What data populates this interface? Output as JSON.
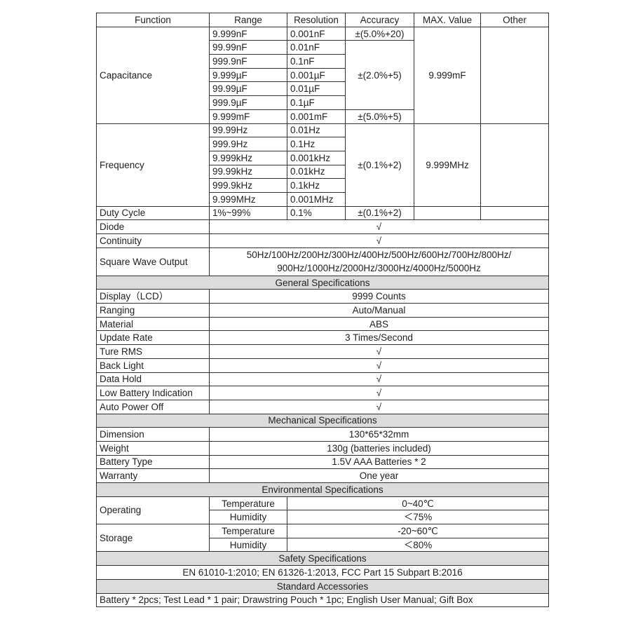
{
  "header": [
    "Function",
    "Range",
    "Resolution",
    "Accuracy",
    "MAX. Value",
    "Other"
  ],
  "capacitance": {
    "label": "Capacitance",
    "max": "9.999mF",
    "rows": [
      {
        "range": "9.999nF",
        "resolution": "0.001nF"
      },
      {
        "range": "99.99nF",
        "resolution": "0.01nF"
      },
      {
        "range": "999.9nF",
        "resolution": "0.1nF"
      },
      {
        "range": "9.999µF",
        "resolution": "0.001µF"
      },
      {
        "range": "99.99µF",
        "resolution": "0.01µF"
      },
      {
        "range": "999.9µF",
        "resolution": "0.1µF"
      },
      {
        "range": "9.999mF",
        "resolution": "0.001mF"
      }
    ],
    "accuracy": [
      "±(5.0%+20)",
      "±(2.0%+5)",
      "±(5.0%+5)"
    ]
  },
  "frequency": {
    "label": "Frequency",
    "max": "9.999MHz",
    "accuracy": "±(0.1%+2)",
    "rows": [
      {
        "range": "99.99Hz",
        "resolution": "0.01Hz"
      },
      {
        "range": "999.9Hz",
        "resolution": "0.1Hz"
      },
      {
        "range": "9.999kHz",
        "resolution": "0.001kHz"
      },
      {
        "range": "99.99kHz",
        "resolution": "0.01kHz"
      },
      {
        "range": "999.9kHz",
        "resolution": "0.1kHz"
      },
      {
        "range": "9.999MHz",
        "resolution": "0.001MHz"
      }
    ]
  },
  "duty": {
    "label": "Duty Cycle",
    "range": "1%~99%",
    "resolution": "0.1%",
    "accuracy": "±(0.1%+2)"
  },
  "simple_rows": [
    {
      "label": "Diode",
      "value": "√"
    },
    {
      "label": "Continuity",
      "value": "√"
    }
  ],
  "square_wave": {
    "label": "Square Wave Output",
    "value": "50Hz/100Hz/200Hz/300Hz/400Hz/500Hz/600Hz/700Hz/800Hz/ 900Hz/1000Hz/2000Hz/3000Hz/4000Hz/5000Hz"
  },
  "general": {
    "title": "General Specifications",
    "rows": [
      {
        "label": "Display（LCD）",
        "value": "9999 Counts"
      },
      {
        "label": "Ranging",
        "value": "Auto/Manual"
      },
      {
        "label": "Material",
        "value": "ABS"
      },
      {
        "label": "Update Rate",
        "value": "3 Times/Second"
      },
      {
        "label": "Ture RMS",
        "value": "√"
      },
      {
        "label": "Back Light",
        "value": "√"
      },
      {
        "label": "Data Hold",
        "value": "√"
      },
      {
        "label": "Low Battery Indication",
        "value": "√"
      },
      {
        "label": "Auto Power Off",
        "value": "√"
      }
    ]
  },
  "mechanical": {
    "title": "Mechanical Specifications",
    "rows": [
      {
        "label": "Dimension",
        "value": "130*65*32mm"
      },
      {
        "label": "Weight",
        "value": "130g (batteries included)"
      },
      {
        "label": "Battery Type",
        "value": "1.5V AAA Batteries * 2"
      },
      {
        "label": "Warranty",
        "value": "One year"
      }
    ]
  },
  "environmental": {
    "title": "Environmental Specifications",
    "groups": [
      {
        "label": "Operating",
        "rows": [
          {
            "param": "Temperature",
            "value": "0~40℃"
          },
          {
            "param": "Humidity",
            "value": "＜75%"
          }
        ]
      },
      {
        "label": "Storage",
        "rows": [
          {
            "param": "Temperature",
            "value": "-20~60℃"
          },
          {
            "param": "Humidity",
            "value": "＜80%"
          }
        ]
      }
    ]
  },
  "safety": {
    "title": "Safety Specifications",
    "value": "EN 61010-1:2010; EN 61326-1:2013, FCC Part 15 Subpart B:2016"
  },
  "accessories": {
    "title": "Standard Accessories",
    "value": "Battery * 2pcs;  Test Lead * 1 pair;  Drawstring Pouch * 1pc;  English User Manual;  Gift Box"
  }
}
